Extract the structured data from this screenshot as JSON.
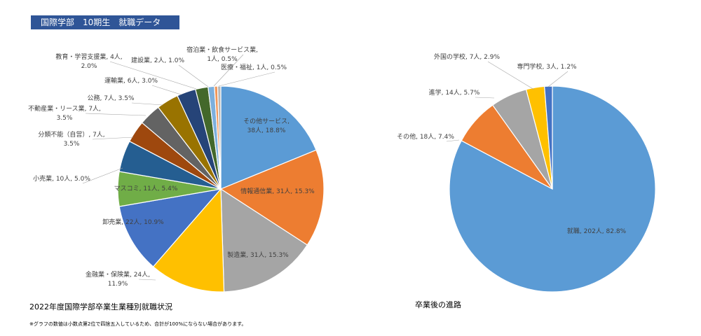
{
  "header": {
    "title": "国際学部　10期生　就職データ"
  },
  "left_title": "2022年度国際学部卒業生業種別就職状況",
  "right_title": "卒業後の進路",
  "footnote": "※グラフの数値は小数点第2位で四捨五入しているため、合計が100%にならない場合があります。",
  "chart_data": [
    {
      "type": "pie",
      "title": "2022年度国際学部卒業生業種別就職状況",
      "slices": [
        {
          "label": [
            "その他サービス,",
            "38人, 18.8%"
          ],
          "name": "その他サービス",
          "value": 38,
          "percent": 18.8,
          "color": "#5b9bd5"
        },
        {
          "label": [
            "情報通信業, 31人, 15.3%"
          ],
          "name": "情報通信業",
          "value": 31,
          "percent": 15.3,
          "color": "#ed7d31"
        },
        {
          "label": [
            "製造業, 31人, 15.3%"
          ],
          "name": "製造業",
          "value": 31,
          "percent": 15.3,
          "color": "#a5a5a5"
        },
        {
          "label": [
            "金融業・保険業, 24人,",
            "11.9%"
          ],
          "name": "金融業・保険業",
          "value": 24,
          "percent": 11.9,
          "color": "#ffc000"
        },
        {
          "label": [
            "卸売業, 22人, 10.9%"
          ],
          "name": "卸売業",
          "value": 22,
          "percent": 10.9,
          "color": "#4472c4"
        },
        {
          "label": [
            "マスコミ, 11人, 5.4%"
          ],
          "name": "マスコミ",
          "value": 11,
          "percent": 5.4,
          "color": "#70ad47"
        },
        {
          "label": [
            "小売業, 10人, 5.0%"
          ],
          "name": "小売業",
          "value": 10,
          "percent": 5.0,
          "color": "#255e91"
        },
        {
          "label": [
            "分類不能（自営）, 7人,",
            "3.5%"
          ],
          "name": "分類不能（自営）",
          "value": 7,
          "percent": 3.5,
          "color": "#9e480e"
        },
        {
          "label": [
            "不動産業・リース業, 7人,",
            "3.5%"
          ],
          "name": "不動産業・リース業",
          "value": 7,
          "percent": 3.5,
          "color": "#636363"
        },
        {
          "label": [
            "公務, 7人, 3.5%"
          ],
          "name": "公務",
          "value": 7,
          "percent": 3.5,
          "color": "#997300"
        },
        {
          "label": [
            "運輸業, 6人, 3.0%"
          ],
          "name": "運輸業",
          "value": 6,
          "percent": 3.0,
          "color": "#264478"
        },
        {
          "label": [
            "教育・学習支援業, 4人,",
            "2.0%"
          ],
          "name": "教育・学習支援業",
          "value": 4,
          "percent": 2.0,
          "color": "#43682b"
        },
        {
          "label": [
            "建設業, 2人, 1.0%"
          ],
          "name": "建設業",
          "value": 2,
          "percent": 1.0,
          "color": "#7cafdd"
        },
        {
          "label": [
            "宿泊業・飲食サービス業,",
            "1人, 0.5%"
          ],
          "name": "宿泊業・飲食サービス業",
          "value": 1,
          "percent": 0.5,
          "color": "#f1975a"
        },
        {
          "label": [
            "医療・福祉, 1人, 0.5%"
          ],
          "name": "医療・福祉",
          "value": 1,
          "percent": 0.5,
          "color": "#b7b7b7"
        }
      ]
    },
    {
      "type": "pie",
      "title": "卒業後の進路",
      "slices": [
        {
          "label": [
            "就職, 202人, 82.8%"
          ],
          "name": "就職",
          "value": 202,
          "percent": 82.8,
          "color": "#5b9bd5"
        },
        {
          "label": [
            "その他, 18人, 7.4%"
          ],
          "name": "その他",
          "value": 18,
          "percent": 7.4,
          "color": "#ed7d31"
        },
        {
          "label": [
            "進学, 14人, 5.7%"
          ],
          "name": "進学",
          "value": 14,
          "percent": 5.7,
          "color": "#a5a5a5"
        },
        {
          "label": [
            "外国の学校, 7人, 2.9%"
          ],
          "name": "外国の学校",
          "value": 7,
          "percent": 2.9,
          "color": "#ffc000"
        },
        {
          "label": [
            "専門学校, 3人, 1.2%"
          ],
          "name": "専門学校",
          "value": 3,
          "percent": 1.2,
          "color": "#4472c4"
        }
      ]
    }
  ]
}
